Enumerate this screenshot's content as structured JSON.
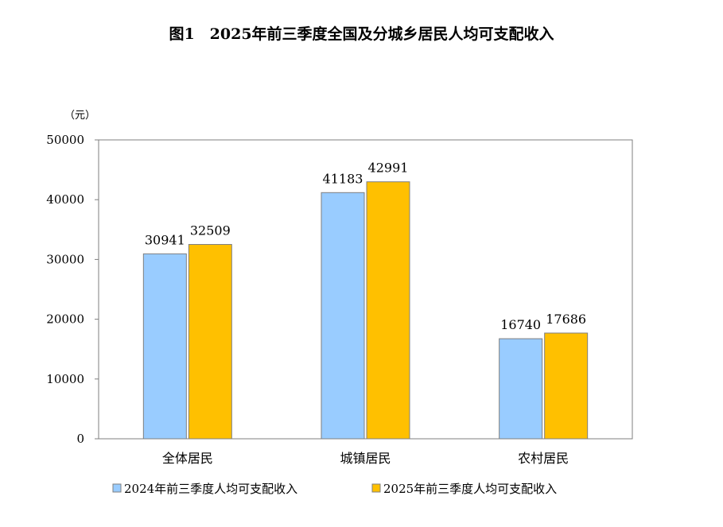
{
  "chart_data": {
    "type": "bar",
    "title": "图1　2025年前三季度全国及分城乡居民人均可支配收入",
    "ylabel": "（元）",
    "xlabel": "",
    "categories": [
      "全体居民",
      "城镇居民",
      "农村居民"
    ],
    "series": [
      {
        "name": "2024年前三季度人均可支配收入",
        "values": [
          30941,
          41183,
          16740
        ],
        "color": "#99CCFF"
      },
      {
        "name": "2025年前三季度人均可支配收入",
        "values": [
          32509,
          42991,
          17686
        ],
        "color": "#FFC000"
      }
    ],
    "ylim": [
      0,
      50000
    ],
    "yticks": [
      0,
      10000,
      20000,
      30000,
      40000,
      50000
    ],
    "data_labels": true,
    "grid": false,
    "legend": "bottom"
  }
}
